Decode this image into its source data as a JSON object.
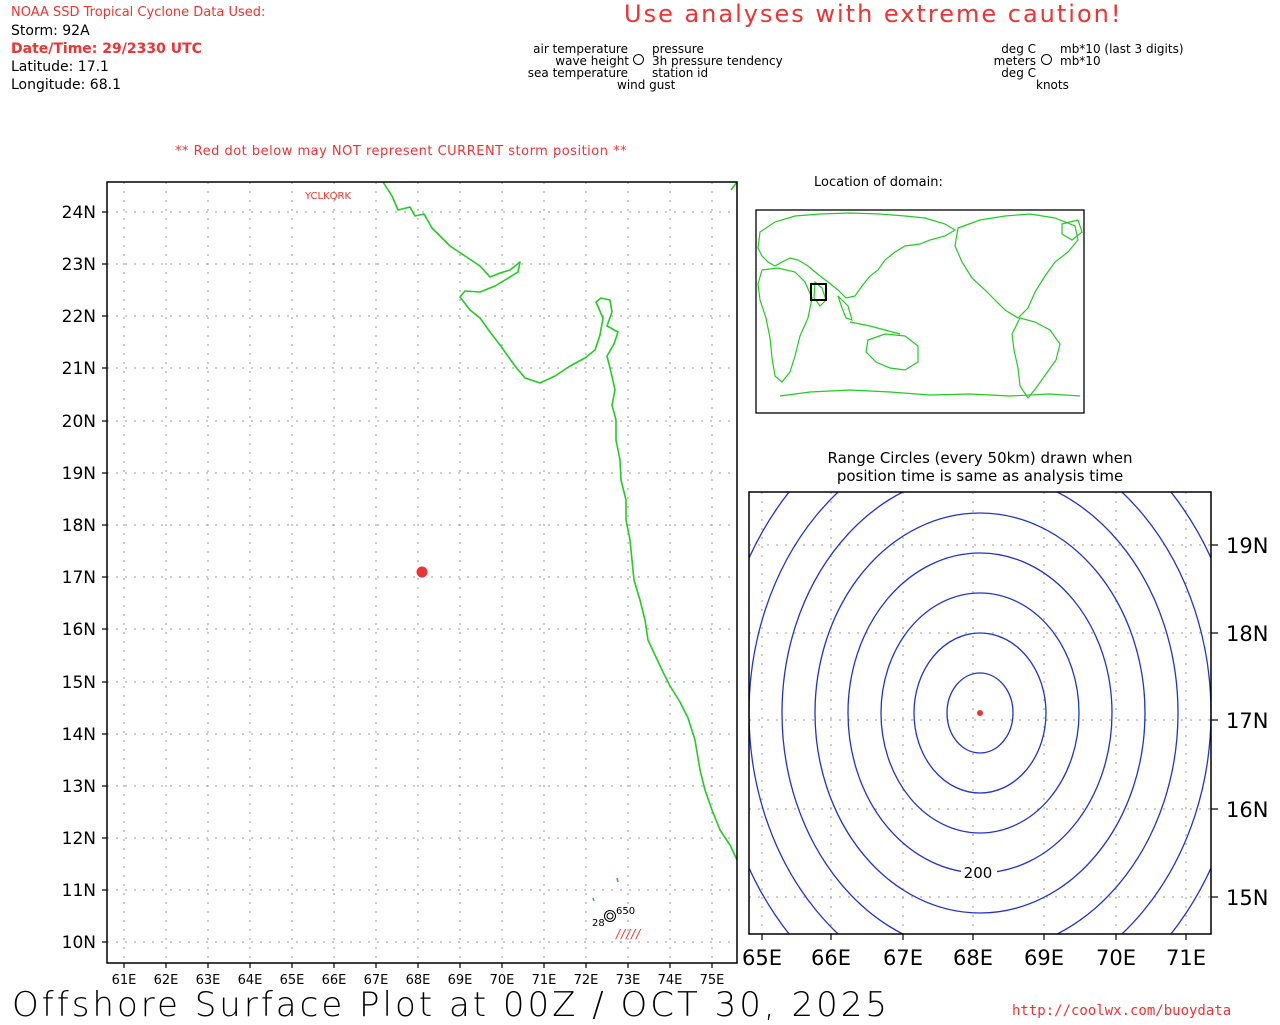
{
  "header": {
    "source_label": "NOAA SSD Tropical Cyclone Data Used:",
    "storm_line": "Storm: 92A",
    "datetime_line": "Date/Time: 29/2330 UTC",
    "latitude_line": "Latitude: 17.1",
    "longitude_line": "Longitude: 68.1",
    "caution": "Use analyses with extreme caution!",
    "red_dot_note": "** Red dot below may NOT represent CURRENT storm position **"
  },
  "legend_left": {
    "air_temperature": "air temperature",
    "wave_height": "wave height",
    "sea_temperature": "sea temperature",
    "pressure": "pressure",
    "pressure_tendency": "3h pressure tendency",
    "station_id": "station id",
    "wind_gust": "wind gust"
  },
  "legend_right": {
    "deg_c_top": "deg C",
    "meters": "meters",
    "deg_c_bottom": "deg C",
    "mb_last3": "mb*10 (last 3 digits)",
    "mb10": "mb*10",
    "knots": "knots"
  },
  "main_map": {
    "lon_labels": [
      "61E",
      "62E",
      "63E",
      "64E",
      "65E",
      "66E",
      "67E",
      "68E",
      "69E",
      "70E",
      "71E",
      "72E",
      "73E",
      "74E",
      "75E"
    ],
    "lat_labels": [
      "24N",
      "23N",
      "22N",
      "21N",
      "20N",
      "19N",
      "18N",
      "17N",
      "16N",
      "15N",
      "14N",
      "13N",
      "12N",
      "11N",
      "10N"
    ],
    "station_id": "YCLKQRK",
    "station_temp": "28",
    "station_pressure": "650",
    "wind_barb": "/////"
  },
  "inset": {
    "title": "Location of domain:"
  },
  "range_map": {
    "title_line1": "Range Circles (every 50km) drawn when",
    "title_line2": "position time is same as analysis time",
    "lon_labels": [
      "65E",
      "66E",
      "67E",
      "68E",
      "69E",
      "70E",
      "71E"
    ],
    "lat_labels": [
      "19N",
      "18N",
      "17N",
      "16N",
      "15N"
    ],
    "ring_label": "200"
  },
  "footer": {
    "title": "Offshore Surface Plot at 00Z / OCT 30, 2025",
    "url": "http://coolwx.com/buoydata"
  },
  "colors": {
    "coast": "#22cc22",
    "storm": "#ee3333",
    "rings": "#2233cc",
    "grid": "#9a9a9a"
  }
}
